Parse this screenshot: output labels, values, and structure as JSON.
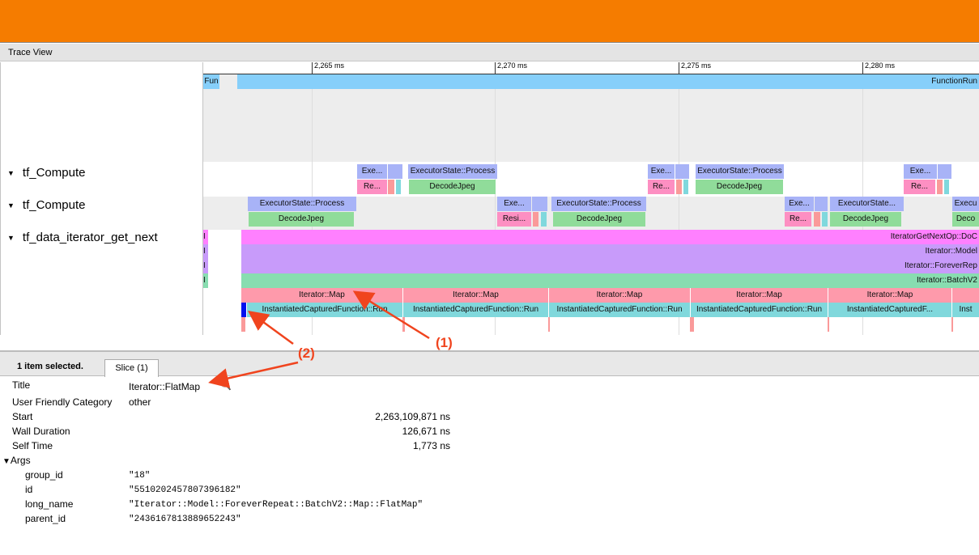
{
  "header": {
    "title": "Trace View"
  },
  "ruler": {
    "ticks": [
      "2,265 ms",
      "2,270 ms",
      "2,275 ms",
      "2,280 ms"
    ]
  },
  "tracks": [
    {
      "label": "tf_Compute",
      "expanded": true
    },
    {
      "label": "tf_Compute",
      "expanded": true
    },
    {
      "label": "tf_data_iterator_get_next",
      "expanded": true
    }
  ],
  "labels": {
    "fun": "Fun",
    "functionrun": "FunctionRun",
    "exe": "Exe...",
    "esp": "ExecutorState::Process",
    "esp_short": "ExecutorState...",
    "execu": "Execu",
    "re": "Re...",
    "resi": "Resi...",
    "decode": "DecodeJpeg",
    "deco": "Deco",
    "i": "I",
    "getnext": "IteratorGetNextOp::DoC",
    "model": "Iterator::Model",
    "forever": "Iterator::ForeverRep",
    "batch": "Iterator::BatchV2",
    "map": "Iterator::Map",
    "icf": "InstantiatedCapturedFunction::Run",
    "icf_short": "InstantiatedCapturedF...",
    "inst": "Inst"
  },
  "colors": {
    "header": "#f57c00",
    "function": "#86cffa",
    "executor": "#a8b3f7",
    "resize": "#fd8fc2",
    "salmon": "#fa9a9a",
    "cyan": "#80d8dd",
    "decode": "#90dc9a",
    "getnext": "#ff80ff",
    "model": "#c89bfa",
    "batch": "#88ddb0",
    "map": "#fe9aab",
    "icf": "#80d8dc",
    "selected": "#0011ee",
    "annotation": "#f0441e"
  },
  "details": {
    "selection_summary": "1 item selected.",
    "tab": "Slice (1)",
    "rows": [
      {
        "label": "Title",
        "value": "Iterator::FlatMap"
      },
      {
        "label": "User Friendly Category",
        "value": "other"
      },
      {
        "label": "Start",
        "value": "2,263,109,871 ns"
      },
      {
        "label": "Wall Duration",
        "value": "126,671 ns"
      },
      {
        "label": "Self Time",
        "value": "1,773 ns"
      }
    ],
    "args_label": "Args",
    "args": [
      {
        "key": "group_id",
        "value": "\"18\""
      },
      {
        "key": "id",
        "value": "\"5510202457807396182\""
      },
      {
        "key": "long_name",
        "value": "\"Iterator::Model::ForeverRepeat::BatchV2::Map::FlatMap\""
      },
      {
        "key": "parent_id",
        "value": "\"2436167813889652243\""
      }
    ]
  },
  "annotations": [
    "(1)",
    "(2)"
  ]
}
